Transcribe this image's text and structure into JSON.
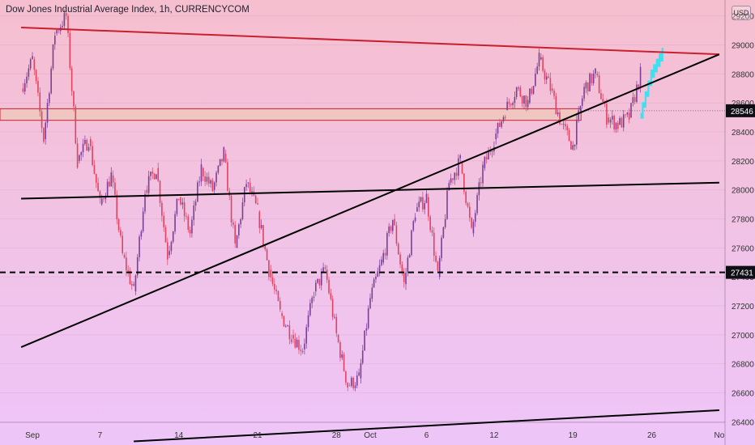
{
  "title": "Dow Jones Industrial Average Index, 1h, CURRENCYCOM",
  "currency": "USD",
  "colors": {
    "up": "#7a3f95",
    "down": "#e04360",
    "resistance": "#c8202e",
    "projection": "#3fe0f0",
    "zone": "#efc6c2"
  },
  "chart_data": {
    "type": "candlestick",
    "instrument": "Dow Jones Industrial Average Index",
    "timeframe": "1h",
    "source": "CURRENCYCOM",
    "x_ticks": [
      "Sep",
      "7",
      "14",
      "21",
      "28",
      "Oct",
      "6",
      "12",
      "19",
      "26",
      "No"
    ],
    "y_ticks": [
      26400,
      26600,
      26800,
      27000,
      27200,
      27400,
      27600,
      27800,
      28000,
      28200,
      28400,
      28600,
      28800,
      29000,
      29200
    ],
    "ylim": [
      26240,
      29310
    ],
    "price_labels": [
      {
        "value": 28546,
        "label": "28546"
      },
      {
        "value": 27431,
        "label": "27431"
      }
    ],
    "lines": [
      {
        "name": "descending resistance",
        "style": "solid",
        "color": "red",
        "from": {
          "date": "Aug 31",
          "value": 29120
        },
        "to": {
          "date": "Nov 1",
          "value": 28935
        }
      },
      {
        "name": "upper channel line",
        "style": "solid",
        "color": "black",
        "from": {
          "date": "Aug 31",
          "value": 27940
        },
        "to": {
          "date": "Nov 1",
          "value": 28050
        }
      },
      {
        "name": "lower channel line",
        "style": "solid",
        "color": "black",
        "from": {
          "date": "Sep 10",
          "value": 26265
        },
        "to": {
          "date": "Nov 1",
          "value": 26480
        }
      },
      {
        "name": "rising trendline",
        "style": "solid",
        "color": "black",
        "from": {
          "date": "Aug 31",
          "value": 26915
        },
        "to": {
          "date": "Nov 1",
          "value": 28935
        }
      },
      {
        "name": "horizontal support",
        "style": "dashed",
        "color": "black",
        "value": 27431
      }
    ],
    "zone": {
      "low": 28480,
      "high": 28560
    },
    "path": [
      [
        "Aug 31",
        28700
      ],
      [
        "Sep 1",
        28900
      ],
      [
        "Sep 2",
        28350
      ],
      [
        "Sep 3",
        29080
      ],
      [
        "Sep 4",
        29200
      ],
      [
        "Sep 5",
        28200
      ],
      [
        "Sep 6",
        28350
      ],
      [
        "Sep 7",
        27900
      ],
      [
        "Sep 8",
        28100
      ],
      [
        "Sep 9",
        27550
      ],
      [
        "Sep 10",
        27300
      ],
      [
        "Sep 11",
        28000
      ],
      [
        "Sep 12",
        28150
      ],
      [
        "Sep 13",
        27550
      ],
      [
        "Sep 14",
        27950
      ],
      [
        "Sep 15",
        27700
      ],
      [
        "Sep 16",
        28150
      ],
      [
        "Sep 17",
        28000
      ],
      [
        "Sep 18",
        28250
      ],
      [
        "Sep 19",
        27600
      ],
      [
        "Sep 20",
        28050
      ],
      [
        "Sep 21",
        27850
      ],
      [
        "Sep 22",
        27450
      ],
      [
        "Sep 23",
        27150
      ],
      [
        "Sep 24",
        27000
      ],
      [
        "Sep 25",
        26900
      ],
      [
        "Sep 26",
        27300
      ],
      [
        "Sep 27",
        27450
      ],
      [
        "Sep 28",
        27000
      ],
      [
        "Sep 29",
        26650
      ],
      [
        "Sep 30",
        26700
      ],
      [
        "Oct 1",
        27250
      ],
      [
        "Oct 2",
        27500
      ],
      [
        "Oct 3",
        27800
      ],
      [
        "Oct 4",
        27350
      ],
      [
        "Oct 5",
        27850
      ],
      [
        "Oct 6",
        27950
      ],
      [
        "Oct 7",
        27400
      ],
      [
        "Oct 8",
        28050
      ],
      [
        "Oct 9",
        28200
      ],
      [
        "Oct 10",
        27700
      ],
      [
        "Oct 11",
        28150
      ],
      [
        "Oct 12",
        28350
      ],
      [
        "Oct 13",
        28550
      ],
      [
        "Oct 14",
        28700
      ],
      [
        "Oct 15",
        28600
      ],
      [
        "Oct 16",
        28900
      ],
      [
        "Oct 17",
        28700
      ],
      [
        "Oct 18",
        28450
      ],
      [
        "Oct 19",
        28300
      ],
      [
        "Oct 20",
        28700
      ],
      [
        "Oct 21",
        28800
      ],
      [
        "Oct 22",
        28500
      ],
      [
        "Oct 23",
        28450
      ],
      [
        "Oct 24",
        28500
      ],
      [
        "Oct 25",
        28800
      ]
    ],
    "projection": [
      [
        "Oct 25",
        28500
      ],
      [
        "Oct 26",
        28800
      ],
      [
        "Oct 27",
        28950
      ]
    ]
  }
}
